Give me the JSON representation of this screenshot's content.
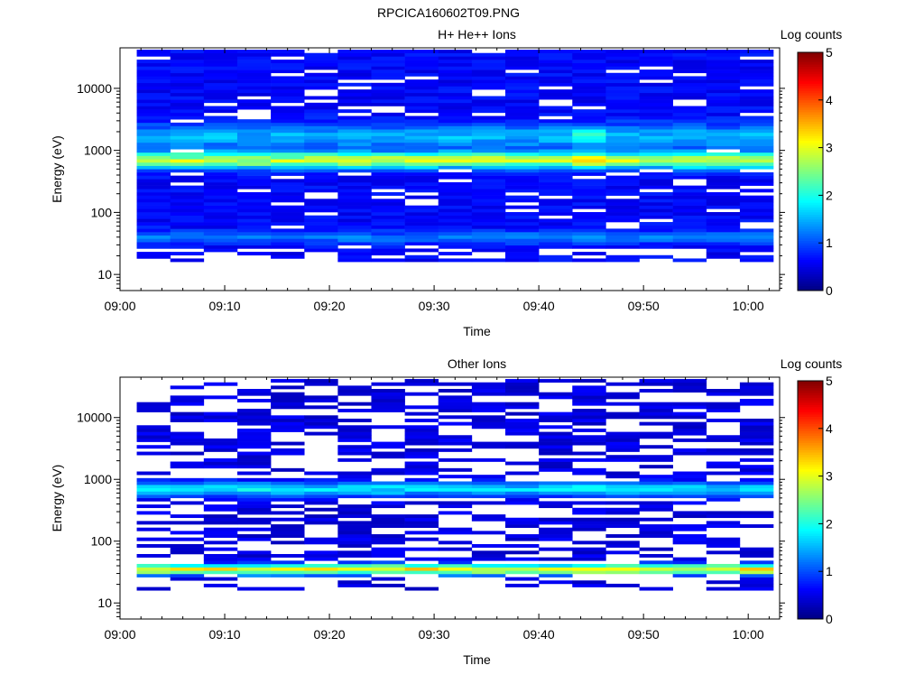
{
  "figure_title": "RPCICA160602T09.PNG",
  "chart_data": [
    {
      "type": "heatmap",
      "title": "H+ He++ Ions",
      "xlabel": "Time",
      "ylabel": "Energy (eV)",
      "colorbar_label": "Log counts",
      "x_ticks": [
        "09:00",
        "09:10",
        "09:20",
        "09:30",
        "09:40",
        "09:50",
        "10:00"
      ],
      "x_tick_minutes": [
        0,
        10,
        20,
        30,
        40,
        50,
        60
      ],
      "xlim_minutes": [
        0,
        63
      ],
      "data_x_start_minutes": 1.6,
      "time_bin_minutes": 3.2,
      "n_time_bins": 19,
      "y_ticks": [
        10,
        100,
        1000,
        10000
      ],
      "y_tick_labels": [
        "10",
        "100",
        "1000",
        "10000"
      ],
      "y_scale": "log",
      "ylim": [
        5.5,
        45000
      ],
      "energy_range_ev": [
        16,
        42000
      ],
      "colorbar_ticks": [
        0,
        1,
        2,
        3,
        4,
        5
      ],
      "colorbar_range": [
        0,
        5
      ],
      "profile": {
        "peaks": [
          {
            "center_ev": 700,
            "width_log": 0.09,
            "amplitude": 2.2
          },
          {
            "center_ev": 1700,
            "width_log": 0.14,
            "amplitude": 0.85
          },
          {
            "center_ev": 40,
            "width_log": 0.07,
            "amplitude": 0.6
          }
        ],
        "background": 0.45,
        "empty_probability": 0.12,
        "low_energy_cutoff_ev": 25,
        "sparse_bins_below_cutoff": true,
        "seed": 7
      },
      "highlights": [
        {
          "time_bin": 13,
          "center_ev": 700,
          "extra": 0.35
        },
        {
          "time_bin": 13,
          "center_ev": 1700,
          "extra": 0.6
        }
      ]
    },
    {
      "type": "heatmap",
      "title": "Other Ions",
      "xlabel": "Time",
      "ylabel": "Energy (eV)",
      "colorbar_label": "Log counts",
      "x_ticks": [
        "09:00",
        "09:10",
        "09:20",
        "09:30",
        "09:40",
        "09:50",
        "10:00"
      ],
      "x_tick_minutes": [
        0,
        10,
        20,
        30,
        40,
        50,
        60
      ],
      "xlim_minutes": [
        0,
        63
      ],
      "data_x_start_minutes": 1.6,
      "time_bin_minutes": 3.2,
      "n_time_bins": 19,
      "y_ticks": [
        10,
        100,
        1000,
        10000
      ],
      "y_tick_labels": [
        "10",
        "100",
        "1000",
        "10000"
      ],
      "y_scale": "log",
      "ylim": [
        5.5,
        45000
      ],
      "energy_range_ev": [
        16,
        42000
      ],
      "colorbar_ticks": [
        0,
        1,
        2,
        3,
        4,
        5
      ],
      "colorbar_range": [
        0,
        5
      ],
      "profile": {
        "peaks": [
          {
            "center_ev": 700,
            "width_log": 0.08,
            "amplitude": 1.3
          },
          {
            "center_ev": 35,
            "width_log": 0.06,
            "amplitude": 2.6
          }
        ],
        "background": 0.3,
        "empty_probability": 0.45,
        "low_energy_cutoff_ev": 25,
        "sparse_bins_below_cutoff": true,
        "seed": 23
      },
      "highlights": []
    }
  ]
}
